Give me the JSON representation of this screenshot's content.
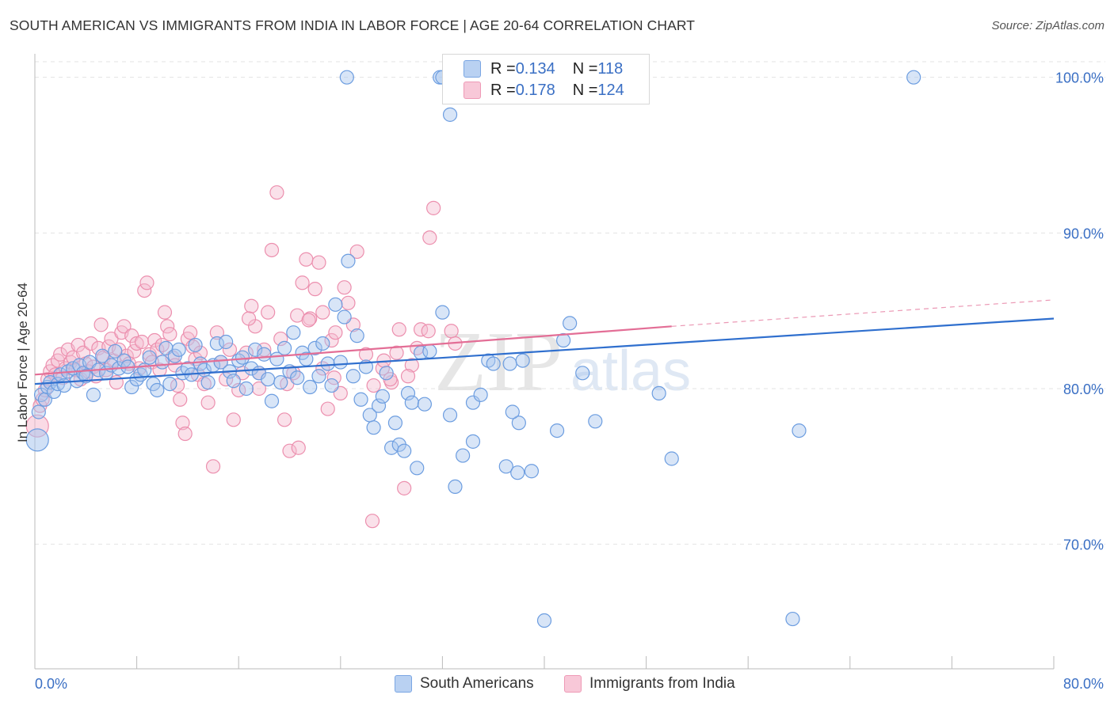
{
  "header": {
    "title": "SOUTH AMERICAN VS IMMIGRANTS FROM INDIA IN LABOR FORCE | AGE 20-64 CORRELATION CHART",
    "source": "Source: ZipAtlas.com"
  },
  "watermark": {
    "zip": "ZIP",
    "atlas": "atlas"
  },
  "legend": {
    "rows": [
      {
        "r_label": "R = ",
        "r_value": "0.134",
        "n_label": "N = ",
        "n_value": "118"
      },
      {
        "r_label": "R = ",
        "r_value": "0.178",
        "n_label": "N = ",
        "n_value": "124"
      }
    ],
    "bottom": [
      "South Americans",
      "Immigrants from India"
    ]
  },
  "colors": {
    "blue_fill": "#a9c6ee",
    "blue_stroke": "#6c9de0",
    "blue_line": "#2f6fce",
    "pink_fill": "#f5bcd0",
    "pink_stroke": "#ec8fae",
    "pink_line": "#e36e96",
    "tick_text": "#3a6fc4",
    "grid": "#e3e3e3"
  },
  "chart_data": {
    "type": "scatter",
    "title": "SOUTH AMERICAN VS IMMIGRANTS FROM INDIA IN LABOR FORCE | AGE 20-64 CORRELATION CHART",
    "xlabel": "",
    "ylabel": "In Labor Force | Age 20-64",
    "xlim": [
      0,
      80
    ],
    "ylim": [
      62,
      101
    ],
    "x_tick_labels": [
      {
        "value": 0,
        "label": "0.0%"
      },
      {
        "value": 80,
        "label": "80.0%"
      }
    ],
    "x_minor_ticks": [
      0,
      8,
      16,
      24,
      32,
      40,
      48,
      56,
      64,
      72,
      80
    ],
    "y_ticks": [
      {
        "value": 70,
        "label": "70.0%"
      },
      {
        "value": 80,
        "label": "80.0%"
      },
      {
        "value": 90,
        "label": "90.0%"
      },
      {
        "value": 100,
        "label": "100.0%"
      }
    ],
    "series": [
      {
        "name": "South Americans",
        "R": 0.134,
        "N": 118,
        "trend": {
          "x": [
            0,
            80
          ],
          "y": [
            80.3,
            84.5
          ]
        },
        "points": [
          [
            0.2,
            76.7
          ],
          [
            0.3,
            78.5
          ],
          [
            0.5,
            79.6
          ],
          [
            0.8,
            79.3
          ],
          [
            1,
            80.1
          ],
          [
            1.2,
            80.4
          ],
          [
            1.5,
            79.8
          ],
          [
            1.8,
            80.3
          ],
          [
            2,
            80.9
          ],
          [
            2.3,
            80.2
          ],
          [
            2.6,
            81.1
          ],
          [
            3,
            81.3
          ],
          [
            3.3,
            80.5
          ],
          [
            3.5,
            81.5
          ],
          [
            3.8,
            81.0
          ],
          [
            4,
            80.8
          ],
          [
            4.3,
            81.7
          ],
          [
            4.6,
            79.6
          ],
          [
            5,
            81.2
          ],
          [
            5.3,
            82.1
          ],
          [
            5.6,
            81.0
          ],
          [
            6,
            81.5
          ],
          [
            6.3,
            82.4
          ],
          [
            6.6,
            81.3
          ],
          [
            7,
            81.8
          ],
          [
            7.3,
            81.4
          ],
          [
            7.6,
            80.1
          ],
          [
            8,
            80.6
          ],
          [
            8.3,
            80.9
          ],
          [
            8.6,
            81.2
          ],
          [
            9,
            82.0
          ],
          [
            9.3,
            80.3
          ],
          [
            9.6,
            79.9
          ],
          [
            10,
            81.7
          ],
          [
            10.3,
            82.6
          ],
          [
            10.6,
            80.3
          ],
          [
            11,
            82.1
          ],
          [
            11.3,
            82.5
          ],
          [
            11.6,
            81.0
          ],
          [
            12,
            81.3
          ],
          [
            12.3,
            80.9
          ],
          [
            12.6,
            82.8
          ],
          [
            13,
            81.6
          ],
          [
            13.3,
            81.2
          ],
          [
            13.6,
            80.4
          ],
          [
            14,
            81.5
          ],
          [
            14.3,
            82.9
          ],
          [
            14.6,
            81.7
          ],
          [
            15,
            83.0
          ],
          [
            15.3,
            81.1
          ],
          [
            15.6,
            80.5
          ],
          [
            16,
            81.8
          ],
          [
            16.3,
            82.0
          ],
          [
            16.6,
            80.0
          ],
          [
            17,
            81.3
          ],
          [
            17.3,
            82.5
          ],
          [
            17.6,
            81.0
          ],
          [
            18,
            82.2
          ],
          [
            18.3,
            80.6
          ],
          [
            18.6,
            79.2
          ],
          [
            19,
            81.9
          ],
          [
            19.3,
            80.4
          ],
          [
            19.6,
            82.6
          ],
          [
            20,
            81.1
          ],
          [
            20.3,
            83.6
          ],
          [
            20.6,
            80.7
          ],
          [
            21,
            82.3
          ],
          [
            21.3,
            81.9
          ],
          [
            21.6,
            80.1
          ],
          [
            22,
            82.6
          ],
          [
            22.3,
            80.8
          ],
          [
            22.6,
            82.9
          ],
          [
            23,
            81.6
          ],
          [
            23.3,
            80.2
          ],
          [
            23.6,
            85.4
          ],
          [
            24,
            81.7
          ],
          [
            24.3,
            84.6
          ],
          [
            24.6,
            88.2
          ],
          [
            25,
            80.8
          ],
          [
            25.3,
            83.4
          ],
          [
            25.6,
            79.3
          ],
          [
            26,
            81.4
          ],
          [
            26.3,
            78.3
          ],
          [
            26.6,
            77.5
          ],
          [
            27,
            78.9
          ],
          [
            27.3,
            79.5
          ],
          [
            27.6,
            81.0
          ],
          [
            28,
            76.2
          ],
          [
            28.3,
            77.8
          ],
          [
            28.6,
            76.4
          ],
          [
            29,
            76.0
          ],
          [
            29.3,
            79.7
          ],
          [
            29.6,
            79.1
          ],
          [
            30,
            74.9
          ],
          [
            30.3,
            82.3
          ],
          [
            30.6,
            79.0
          ],
          [
            31,
            82.4
          ],
          [
            32,
            84.9
          ],
          [
            32.6,
            78.3
          ],
          [
            33,
            73.7
          ],
          [
            33.6,
            75.7
          ],
          [
            34.4,
            79.1
          ],
          [
            35,
            79.6
          ],
          [
            35.6,
            81.8
          ],
          [
            34.4,
            76.6
          ],
          [
            36,
            81.6
          ],
          [
            37,
            75.0
          ],
          [
            38,
            77.8
          ],
          [
            39,
            74.7
          ],
          [
            40,
            65.1
          ],
          [
            41,
            77.3
          ],
          [
            43,
            81.0
          ],
          [
            41.5,
            83.1
          ],
          [
            42,
            84.2
          ],
          [
            44,
            77.9
          ],
          [
            37.3,
            81.6
          ],
          [
            38.3,
            81.8
          ],
          [
            37.9,
            74.6
          ],
          [
            37.5,
            78.5
          ],
          [
            49,
            79.7
          ],
          [
            50,
            75.5
          ],
          [
            60,
            77.3
          ],
          [
            59.5,
            65.2
          ],
          [
            69,
            100.0
          ],
          [
            24.5,
            100.0
          ],
          [
            32.6,
            97.6
          ],
          [
            31.8,
            100.0
          ],
          [
            32,
            100.0
          ]
        ]
      },
      {
        "name": "Immigrants from India",
        "R": 0.178,
        "N": 124,
        "trend": {
          "x": [
            0,
            50
          ],
          "y": [
            80.9,
            84.0
          ],
          "dashed_extension": {
            "x": [
              50,
              80
            ],
            "y": [
              84.0,
              85.7
            ]
          }
        },
        "points": [
          [
            0.2,
            77.6
          ],
          [
            0.4,
            78.9
          ],
          [
            0.6,
            79.3
          ],
          [
            0.8,
            79.9
          ],
          [
            1,
            80.6
          ],
          [
            1.2,
            81.1
          ],
          [
            1.4,
            81.5
          ],
          [
            1.6,
            80.9
          ],
          [
            1.8,
            81.8
          ],
          [
            2,
            82.2
          ],
          [
            2.2,
            80.7
          ],
          [
            2.4,
            81.3
          ],
          [
            2.6,
            82.5
          ],
          [
            2.8,
            81.7
          ],
          [
            3,
            82.0
          ],
          [
            3.2,
            81.2
          ],
          [
            3.4,
            82.8
          ],
          [
            3.6,
            80.6
          ],
          [
            3.8,
            82.3
          ],
          [
            4,
            81.6
          ],
          [
            4.2,
            81.1
          ],
          [
            4.4,
            82.9
          ],
          [
            4.6,
            81.4
          ],
          [
            4.8,
            80.8
          ],
          [
            5,
            82.6
          ],
          [
            5.2,
            84.1
          ],
          [
            5.4,
            82.0
          ],
          [
            5.6,
            81.2
          ],
          [
            5.8,
            82.7
          ],
          [
            6,
            83.2
          ],
          [
            6.2,
            81.8
          ],
          [
            6.4,
            80.4
          ],
          [
            6.6,
            82.5
          ],
          [
            6.8,
            83.6
          ],
          [
            7,
            84.0
          ],
          [
            7.2,
            82.1
          ],
          [
            7.4,
            81.6
          ],
          [
            7.6,
            83.4
          ],
          [
            7.8,
            82.4
          ],
          [
            8,
            82.9
          ],
          [
            8.2,
            81.3
          ],
          [
            8.4,
            83.0
          ],
          [
            8.6,
            86.3
          ],
          [
            8.8,
            86.8
          ],
          [
            9,
            82.2
          ],
          [
            9.2,
            81.7
          ],
          [
            9.4,
            83.1
          ],
          [
            9.6,
            82.5
          ],
          [
            9.8,
            81.2
          ],
          [
            10,
            82.8
          ],
          [
            10.2,
            84.9
          ],
          [
            10.4,
            84.0
          ],
          [
            10.6,
            83.5
          ],
          [
            10.8,
            82.0
          ],
          [
            11,
            81.5
          ],
          [
            11.2,
            80.2
          ],
          [
            11.4,
            79.3
          ],
          [
            11.6,
            77.8
          ],
          [
            11.8,
            77.1
          ],
          [
            12,
            83.2
          ],
          [
            12.2,
            83.6
          ],
          [
            12.4,
            82.7
          ],
          [
            12.6,
            81.9
          ],
          [
            12.8,
            80.9
          ],
          [
            13,
            82.3
          ],
          [
            13.3,
            80.3
          ],
          [
            13.6,
            79.1
          ],
          [
            14,
            75.0
          ],
          [
            14.3,
            83.6
          ],
          [
            14.6,
            81.7
          ],
          [
            15,
            80.6
          ],
          [
            15.3,
            82.5
          ],
          [
            15.6,
            78.0
          ],
          [
            16,
            79.9
          ],
          [
            16.3,
            81.0
          ],
          [
            16.6,
            82.3
          ],
          [
            17,
            85.3
          ],
          [
            17.3,
            84.0
          ],
          [
            17.6,
            80.0
          ],
          [
            18,
            82.5
          ],
          [
            18.3,
            84.9
          ],
          [
            18.6,
            88.9
          ],
          [
            19,
            92.6
          ],
          [
            19.3,
            83.2
          ],
          [
            19.6,
            78.0
          ],
          [
            20,
            76.0
          ],
          [
            20.3,
            81.0
          ],
          [
            20.6,
            84.7
          ],
          [
            21,
            86.8
          ],
          [
            21.3,
            88.3
          ],
          [
            21.6,
            84.5
          ],
          [
            22,
            86.4
          ],
          [
            22.3,
            88.1
          ],
          [
            22.6,
            84.9
          ],
          [
            23,
            78.7
          ],
          [
            23.3,
            83.1
          ],
          [
            23.6,
            83.6
          ],
          [
            24,
            79.7
          ],
          [
            24.3,
            86.5
          ],
          [
            24.6,
            85.5
          ],
          [
            25,
            84.1
          ],
          [
            25.3,
            88.8
          ],
          [
            26,
            82.2
          ],
          [
            26.6,
            80.2
          ],
          [
            27.3,
            81.3
          ],
          [
            28,
            80.4
          ],
          [
            28.6,
            83.8
          ],
          [
            29,
            73.6
          ],
          [
            29.6,
            81.5
          ],
          [
            30,
            82.6
          ],
          [
            30.3,
            83.8
          ],
          [
            31,
            89.7
          ],
          [
            31.3,
            91.6
          ],
          [
            33,
            82.9
          ],
          [
            20.7,
            76.2
          ],
          [
            22.6,
            81.3
          ],
          [
            27.4,
            81.8
          ],
          [
            28.4,
            82.3
          ],
          [
            16.8,
            84.5
          ],
          [
            17.6,
            81.0
          ],
          [
            19.8,
            80.3
          ],
          [
            21.5,
            84.4
          ],
          [
            23.5,
            80.7
          ],
          [
            27.9,
            80.6
          ],
          [
            29.3,
            80.8
          ],
          [
            26.5,
            71.5
          ],
          [
            30.9,
            83.7
          ],
          [
            32.7,
            83.7
          ]
        ]
      }
    ]
  }
}
